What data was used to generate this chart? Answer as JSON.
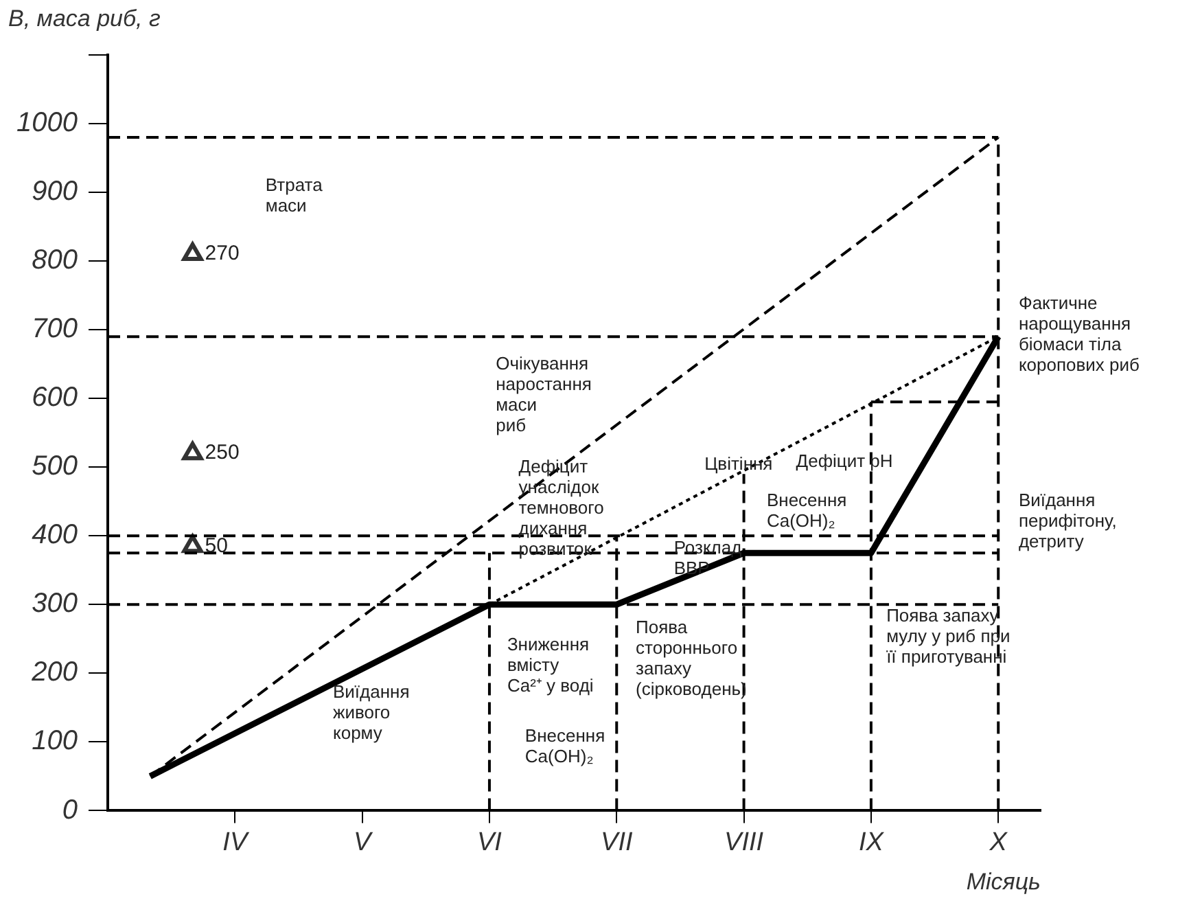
{
  "chart_data": {
    "type": "line",
    "xlabel": "Місяць",
    "ylabel": "В, маса риб, г",
    "categories": [
      null,
      null,
      null,
      "IV",
      null,
      null,
      "V",
      null,
      null,
      "VI",
      null,
      null,
      "VII",
      null,
      null,
      "VIII",
      null,
      null,
      "IX",
      null,
      null,
      "X",
      null
    ],
    "ylim": [
      0,
      1100
    ],
    "yticks": [
      0,
      100,
      200,
      300,
      400,
      500,
      600,
      700,
      800,
      900,
      1000,
      {
        "value": 1100,
        "label": null
      }
    ],
    "series": [
      {
        "color": "#000000",
        "line_style": "dashed",
        "values": [
          980,
          null,
          null,
          null,
          null,
          null,
          null,
          null,
          null,
          null,
          null,
          null,
          null,
          null,
          null,
          null,
          null,
          null,
          null,
          null,
          null,
          980,
          null
        ]
      },
      {
        "color": "#000000",
        "line_style": "dashed",
        "values": [
          690,
          null,
          null,
          null,
          null,
          null,
          null,
          null,
          null,
          null,
          null,
          null,
          null,
          null,
          null,
          null,
          null,
          null,
          null,
          null,
          null,
          690,
          null
        ]
      },
      {
        "color": "#000000",
        "line_style": "dashed",
        "values": [
          400,
          null,
          null,
          null,
          null,
          null,
          null,
          null,
          null,
          null,
          null,
          null,
          null,
          null,
          null,
          null,
          null,
          null,
          null,
          null,
          null,
          400,
          null
        ]
      },
      {
        "color": "#000000",
        "line_style": "dashed",
        "values": [
          375,
          null,
          null,
          null,
          null,
          null,
          null,
          null,
          null,
          null,
          null,
          null,
          null,
          null,
          null,
          null,
          null,
          null,
          null,
          null,
          null,
          375,
          null
        ]
      },
      {
        "color": "#000000",
        "line_style": "dashed",
        "values": [
          300,
          null,
          null,
          null,
          null,
          null,
          null,
          null,
          null,
          null,
          null,
          null,
          null,
          null,
          null,
          null,
          null,
          null,
          null,
          null,
          null,
          300,
          null
        ]
      },
      {
        "color": "#000000",
        "line_style": "dashed",
        "x": [
          "VI",
          "VI"
        ],
        "values": [
          0,
          375
        ]
      },
      {
        "color": "#000000",
        "line_style": "dashed",
        "x": [
          "VII",
          "VII"
        ],
        "values": [
          0,
          400
        ]
      },
      {
        "color": "#000000",
        "line_style": "dashed",
        "x": [
          "VIII",
          "VIII"
        ],
        "values": [
          0,
          490
        ]
      },
      {
        "color": "#000000",
        "line_style": "dashed",
        "x": [
          "IX",
          "IX"
        ],
        "values": [
          0,
          595
        ]
      },
      {
        "color": "#000000",
        "line_style": "dashed",
        "x": [
          "X",
          "X"
        ],
        "values": [
          0,
          980
        ]
      },
      {
        "color": "#000000",
        "line_style": "dashed",
        "x": [
          "IX",
          "X"
        ],
        "values": [
          595,
          595
        ]
      },
      {
        "color": "#000000",
        "line_style": "dashed",
        "values": [
          null,
          50,
          null,
          null,
          null,
          null,
          null,
          null,
          null,
          null,
          null,
          null,
          null,
          null,
          null,
          null,
          null,
          null,
          null,
          null,
          null,
          980,
          null
        ]
      },
      {
        "color": "#000000",
        "line_style": "dotted",
        "x": [
          "VI",
          "X"
        ],
        "values": [
          300,
          690
        ]
      },
      {
        "color": "#000000",
        "line_style": "solid",
        "values": [
          null,
          50,
          null,
          null,
          null,
          null,
          null,
          null,
          null,
          300,
          null,
          null,
          300,
          null,
          null,
          375,
          null,
          null,
          375,
          null,
          null,
          690,
          null
        ]
      },
      {
        "type": "scatter",
        "color": "#333333",
        "marker": "triangle",
        "values": [
          null,
          null,
          810,
          null,
          null,
          null,
          null,
          null,
          null,
          null,
          null,
          null,
          null,
          null,
          null,
          null,
          null,
          null,
          null,
          null,
          null,
          null,
          null
        ]
      },
      {
        "type": "scatter",
        "color": "#333333",
        "marker": "triangle",
        "values": [
          null,
          null,
          520,
          null,
          null,
          null,
          null,
          null,
          null,
          null,
          null,
          null,
          null,
          null,
          null,
          null,
          null,
          null,
          null,
          null,
          null,
          null,
          null
        ]
      },
      {
        "type": "scatter",
        "color": "#333333",
        "marker": "triangle",
        "values": [
          null,
          null,
          385,
          null,
          null,
          null,
          null,
          null,
          null,
          null,
          null,
          null,
          null,
          null,
          null,
          null,
          null,
          null,
          null,
          null,
          null,
          null,
          null
        ]
      }
    ],
    "annotations": [
      "Втрата\nмаси",
      "Очікування\nнаростання\nмаси\nриб",
      "Дефіцит\nунаслідок\nтемнового\nдихання\nрозвиток",
      "Цвітіння",
      "Дефіцит pH",
      "Внесення\nCa(OH)₂",
      "Розклад\nВВР",
      "Поява\nстороннього\nзапаху\n(сірководень)",
      "Зниження\nвмісту\nCa²⁺ у воді",
      "Внесення\nCa(OH)₂",
      "Виїдання\nживого\nкорму",
      "Фактичне\nнарощування\nбіомаси тіла\nкоропових риб",
      "Виїдання\nперифітону,\nдетриту",
      "Поява запаху\nмулу у риб при\nїї приготуванні",
      "270",
      "250",
      "50"
    ]
  }
}
